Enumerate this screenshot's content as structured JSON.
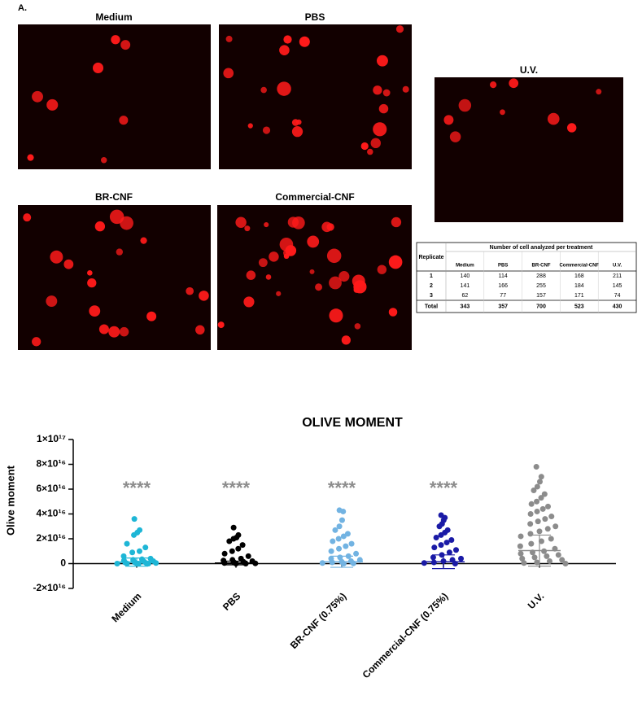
{
  "figure_label": "A.",
  "image_titles": [
    "Medium",
    "PBS",
    "U.V.",
    "BR-CNF",
    "Commercial-CNF"
  ],
  "table": {
    "title": "Number of cell analyzed per treatment",
    "row_header": "Replicate",
    "columns": [
      "Medium",
      "PBS",
      "BR-CNF",
      "Commercial-CNF",
      "U.V."
    ],
    "rows": [
      {
        "label": 1,
        "values": [
          140,
          114,
          288,
          168,
          211
        ]
      },
      {
        "label": 2,
        "values": [
          141,
          166,
          255,
          184,
          145
        ]
      },
      {
        "label": 3,
        "values": [
          62,
          77,
          157,
          171,
          74
        ]
      },
      {
        "label": "Total",
        "values": [
          343,
          357,
          700,
          523,
          430
        ]
      }
    ]
  },
  "chart_data": {
    "type": "strip",
    "title": "OLIVE MOMENT",
    "y_label": "Olive moment",
    "categories": [
      "Medium",
      "PBS",
      "BR-CNF (0.75%)",
      "Commercial-CNF (0.75%)",
      "U.V."
    ],
    "ylim": [
      -2e+16,
      1e+17
    ],
    "yticks": [
      {
        "value": 1e+17,
        "label": "1×10¹⁷"
      },
      {
        "value": 8e+16,
        "label": "8×10¹⁶"
      },
      {
        "value": 6e+16,
        "label": "6×10¹⁶"
      },
      {
        "value": 4e+16,
        "label": "4×10¹⁶"
      },
      {
        "value": 2e+16,
        "label": "2×10¹⁶"
      },
      0,
      {
        "value": -2e+16,
        "label": "-2×10¹⁶"
      }
    ],
    "annotations": [
      "****",
      "****",
      "****",
      "****"
    ],
    "annotation_color": "#8c8c8c",
    "groups": [
      {
        "color": "#1eb6d6",
        "mean": 1200000000000000.0,
        "sd": 3300000000000000.0,
        "values": [
          3.6e+16,
          2.7e+16,
          2.5e+16,
          2.3e+16,
          1.6e+16,
          1.3e+16,
          1e+16,
          9000000000000000.0,
          6000000000000000.0,
          4000000000000000.0,
          3500000000000000.0,
          3000000000000000.0,
          2500000000000000.0,
          2000000000000000.0,
          1500000000000000.0,
          1000000000000000.0,
          800000000000000.0,
          500000000000000.0,
          300000000000000.0,
          200000000000000.0,
          100000000000000.0,
          0,
          0,
          0
        ]
      },
      {
        "color": "#000000",
        "mean": 500000000000000.0,
        "sd": 1500000000000000.0,
        "values": [
          2.9e+16,
          2.3e+16,
          2.1e+16,
          2e+16,
          1.8e+16,
          1.5e+16,
          1.2e+16,
          1e+16,
          8000000000000000.0,
          6000000000000000.0,
          4000000000000000.0,
          3000000000000000.0,
          2500000000000000.0,
          2000000000000000.0,
          1500000000000000.0,
          1000000000000000.0,
          500000000000000.0,
          200000000000000.0,
          0,
          0
        ]
      },
      {
        "color": "#72b3e2",
        "mean": 1500000000000000.0,
        "sd": 4500000000000000.0,
        "values": [
          4.3e+16,
          4.2e+16,
          3.5e+16,
          3e+16,
          2.7e+16,
          2.4e+16,
          2.2e+16,
          2e+16,
          1.8e+16,
          1.6e+16,
          1.4e+16,
          1.2e+16,
          1e+16,
          8000000000000000.0,
          6000000000000000.0,
          5000000000000000.0,
          4000000000000000.0,
          3000000000000000.0,
          2000000000000000.0,
          1500000000000000.0,
          1000000000000000.0,
          500000000000000.0,
          200000000000000.0,
          0
        ]
      },
      {
        "color": "#1a1aa6",
        "mean": 1500000000000000.0,
        "sd": 5500000000000000.0,
        "values": [
          3.9e+16,
          3.7e+16,
          3.5e+16,
          3.2e+16,
          3e+16,
          2.7e+16,
          2.5e+16,
          2.3e+16,
          2.1e+16,
          1.9e+16,
          1.7e+16,
          1.5e+16,
          1.3e+16,
          1.1e+16,
          9000000000000000.0,
          7000000000000000.0,
          5000000000000000.0,
          4000000000000000.0,
          3000000000000000.0,
          2000000000000000.0,
          1000000000000000.0,
          500000000000000.0,
          0
        ]
      },
      {
        "color": "#8c8c8c",
        "mean": 1.05e+16,
        "sd": 1.25e+16,
        "values": [
          7.8e+16,
          7e+16,
          6.6e+16,
          6.2e+16,
          5.9e+16,
          5.6e+16,
          5.3e+16,
          5e+16,
          4.8e+16,
          4.6e+16,
          4.4e+16,
          4.2e+16,
          4e+16,
          3.8e+16,
          3.6e+16,
          3.4e+16,
          3.2e+16,
          3e+16,
          2.8e+16,
          2.6e+16,
          2.4e+16,
          2.2e+16,
          2e+16,
          1.8e+16,
          1.6e+16,
          1.4e+16,
          1.2e+16,
          1e+16,
          9000000000000000.0,
          8000000000000000.0,
          7000000000000000.0,
          6000000000000000.0,
          5000000000000000.0,
          4000000000000000.0,
          3000000000000000.0,
          2000000000000000.0,
          1000000000000000.0,
          500000000000000.0,
          0
        ]
      }
    ]
  }
}
